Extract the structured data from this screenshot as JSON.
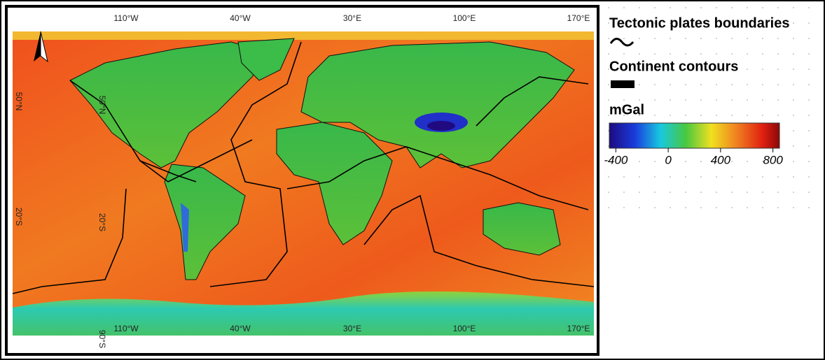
{
  "map": {
    "top_longitude_labels": [
      "110°W",
      "40°W",
      "30°E",
      "100°E",
      "170°E"
    ],
    "bottom_longitude_labels": [
      "110°W",
      "40°W",
      "30°E",
      "100°E",
      "170°E"
    ],
    "edge_latitude_labels": [
      "50°N",
      "20°S"
    ],
    "inner_latitude_labels": [
      "50°N",
      "20°S",
      "90°S"
    ]
  },
  "legend": {
    "plate_boundaries": "Tectonic plates boundaries",
    "continent_contours": "Continent contours",
    "unit": "mGal",
    "colorbar": {
      "range": [
        -450,
        850
      ],
      "ticks": [
        -400,
        0,
        400,
        800
      ]
    }
  }
}
